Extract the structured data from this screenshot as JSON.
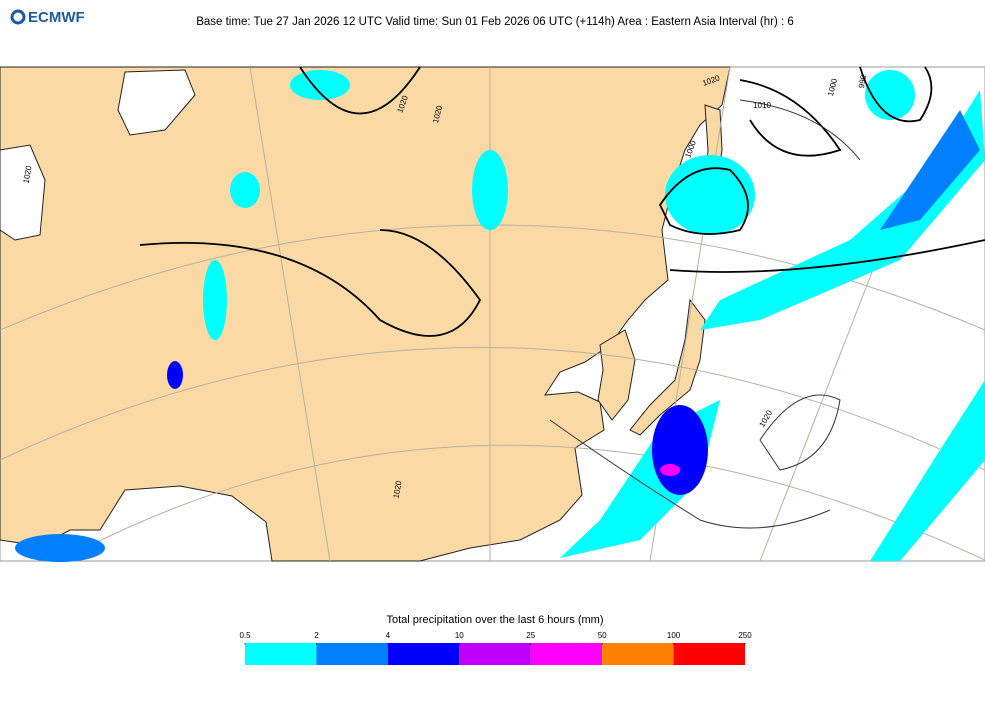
{
  "header": {
    "logo": "ECMWF",
    "title": "Base time: Tue 27 Jan 2026 12 UTC Valid time: Sun 01 Feb 2026 06 UTC (+114h) Area : Eastern Asia Interval (hr) : 6"
  },
  "map": {
    "isobar_labels": [
      "1020",
      "1020",
      "1020",
      "1010",
      "1000",
      "1000",
      "990",
      "1020",
      "1020",
      "1020"
    ]
  },
  "colorbar": {
    "title": "Total precipitation over the last 6 hours (mm)",
    "ticks": [
      0.5,
      2,
      4,
      10,
      25,
      50,
      100,
      250
    ],
    "colors": [
      "#00ffff",
      "#0080ff",
      "#0000ff",
      "#c000ff",
      "#ff00ff",
      "#ff8000",
      "#ff0000"
    ]
  }
}
